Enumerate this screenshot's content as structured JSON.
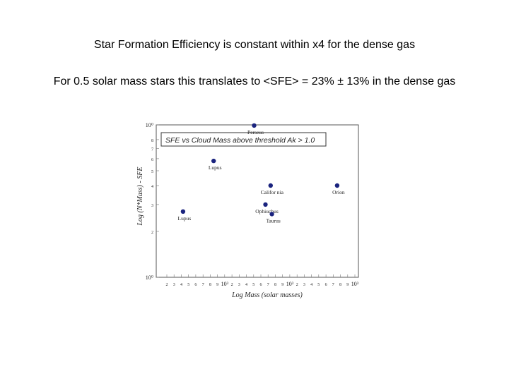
{
  "slide": {
    "line1": "Star Formation Efficiency is constant within x4 for the dense gas",
    "line2": "For 0.5 solar mass stars this translates to <SFE> = 23% ± 13% in the dense gas"
  },
  "chart_data": {
    "type": "scatter",
    "title": "SFE vs Cloud Mass above threshold Ak > 1.0",
    "xlabel": "Log Mass (solar masses)",
    "ylabel": "Log (N*Mass) - SFE",
    "x_scale": "log",
    "y_scale": "log",
    "xlim": [
      150,
      9000
    ],
    "ylim": [
      1,
      10
    ],
    "x_tick_labels": [
      "2",
      "3",
      "4",
      "5",
      "6",
      "7",
      "8",
      "9",
      "10³",
      "2",
      "3",
      "4",
      "5",
      "6",
      "7",
      "8",
      "9",
      "10³",
      "2",
      "3",
      "4",
      "5",
      "6",
      "7",
      "8",
      "9",
      "10³"
    ],
    "y_tick_labels": [
      "10⁰",
      "8",
      "7",
      "6",
      "5",
      "4",
      "3",
      "2",
      "10⁰"
    ],
    "points": [
      {
        "label": "Lupus",
        "x": 258,
        "y": 2.7
      },
      {
        "label": "Lupus",
        "x": 480,
        "y": 5.8
      },
      {
        "label": "Perseus",
        "x": 1090,
        "y": 9.9
      },
      {
        "label": "Califor nia",
        "x": 1520,
        "y": 4.0
      },
      {
        "label": "Ophiuchus",
        "x": 1370,
        "y": 3.0
      },
      {
        "label": "Taurus",
        "x": 1560,
        "y": 2.6
      },
      {
        "label": "Orion",
        "x": 5850,
        "y": 4.0
      }
    ],
    "marker_color": "#1a237e",
    "grid": false
  }
}
